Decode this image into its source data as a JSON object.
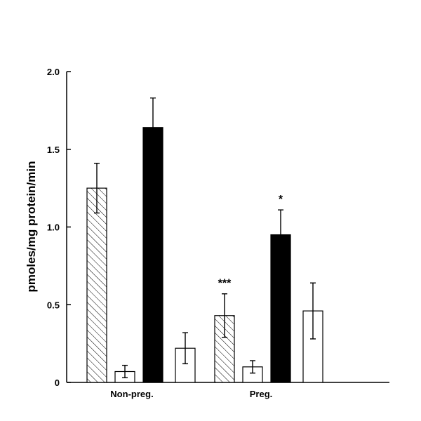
{
  "chart_data": {
    "type": "bar",
    "title": "",
    "xlabel": "",
    "ylabel": "pmoles/mg protein/min",
    "ylim": [
      0,
      2.0
    ],
    "yticks": [
      "0",
      "0.5",
      "1.0",
      "1.5",
      "2.0"
    ],
    "ytick_values": [
      0,
      0.5,
      1.0,
      1.5,
      2.0
    ],
    "grid": false,
    "legend": "none",
    "categories": [
      "Non-preg.",
      "Preg."
    ],
    "series": [
      {
        "fill": "hatched",
        "color": "#000000",
        "values": [
          1.25,
          0.43
        ],
        "errors": [
          0.16,
          0.14
        ]
      },
      {
        "fill": "open",
        "color": "#ffffff",
        "values": [
          0.07,
          0.1
        ],
        "errors": [
          0.04,
          0.04
        ]
      },
      {
        "fill": "solid",
        "color": "#000000",
        "values": [
          1.64,
          0.95
        ],
        "errors": [
          0.19,
          0.16
        ]
      },
      {
        "fill": "open",
        "color": "#ffffff",
        "values": [
          0.22,
          0.46
        ],
        "errors": [
          0.1,
          0.18
        ]
      }
    ],
    "annotations": [
      {
        "text": "***",
        "category": "Preg.",
        "series_index": 0
      },
      {
        "text": "*",
        "category": "Preg.",
        "series_index": 2
      }
    ]
  }
}
